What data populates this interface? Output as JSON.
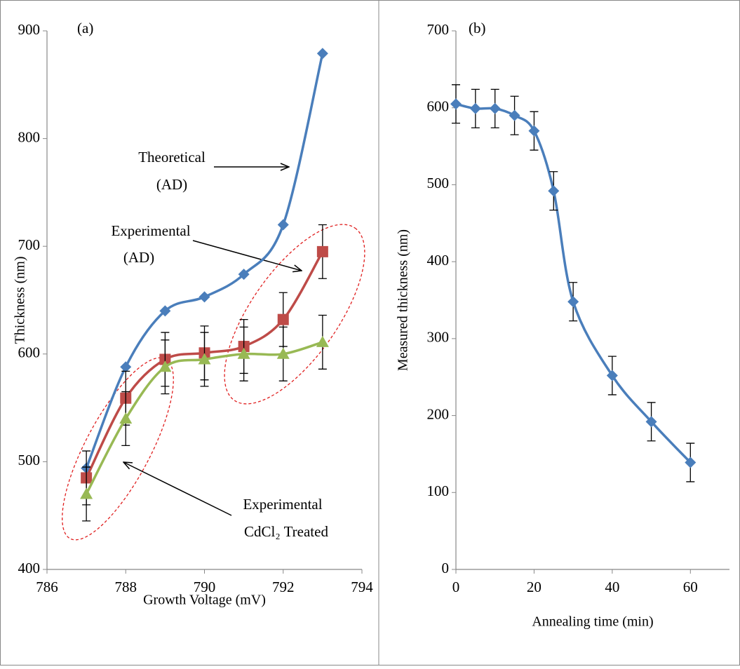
{
  "chart_data": [
    {
      "type": "line",
      "panel_label": "(a)",
      "x_label": "Growth Voltage (mV)",
      "y_label": "Thickness (nm)",
      "x": [
        787,
        788,
        789,
        790,
        791,
        792,
        793
      ],
      "xlim": [
        786,
        794
      ],
      "xticks": [
        786,
        788,
        790,
        792,
        794
      ],
      "ylim": [
        400,
        900
      ],
      "yticks": [
        400,
        500,
        600,
        700,
        800,
        900
      ],
      "series": [
        {
          "color": "#4a7ebb",
          "marker": "diamond",
          "values": [
            494,
            588,
            640,
            653,
            674,
            720,
            879
          ]
        },
        {
          "color": "#be4b48",
          "marker": "square",
          "values": [
            485,
            559,
            595,
            601,
            607,
            632,
            695
          ],
          "errors": [
            25,
            25,
            25,
            25,
            25,
            25,
            25
          ]
        },
        {
          "color": "#98b954",
          "marker": "triangle",
          "values": [
            470,
            540,
            588,
            595,
            600,
            600,
            611
          ],
          "errors": [
            25,
            25,
            25,
            25,
            25,
            25,
            25
          ]
        }
      ],
      "annotations": [
        {
          "lines": [
            "Theoretical",
            "(AD)"
          ]
        },
        {
          "lines": [
            "Experimental",
            "(AD)"
          ]
        },
        {
          "lines": [
            "Experimental",
            "CdCl₂ Treated"
          ]
        }
      ]
    },
    {
      "type": "line",
      "panel_label": "(b)",
      "x_label": "Annealing time (min)",
      "y_label": "Measured thickness (nm)",
      "x": [
        0,
        5,
        10,
        15,
        20,
        25,
        30,
        40,
        50,
        60
      ],
      "xlim": [
        0,
        70
      ],
      "xticks": [
        0,
        20,
        40,
        60
      ],
      "ylim": [
        0,
        700
      ],
      "yticks": [
        0,
        100,
        200,
        300,
        400,
        500,
        600,
        700
      ],
      "series": [
        {
          "color": "#4a7ebb",
          "marker": "diamond",
          "values": [
            605,
            599,
            599,
            590,
            570,
            492,
            348,
            252,
            192,
            139
          ],
          "errors": [
            25,
            25,
            25,
            25,
            25,
            25,
            25,
            25,
            25,
            25
          ]
        }
      ]
    }
  ]
}
